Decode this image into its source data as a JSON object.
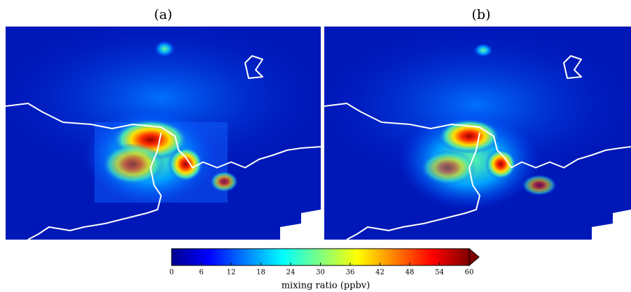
{
  "panels": [
    {
      "label": "(a)"
    },
    {
      "label": "(b)"
    }
  ],
  "colorbar": {
    "label": "mixing ratio (ppbv)",
    "lim": [
      0,
      60
    ],
    "ticks": [
      0,
      6,
      12,
      18,
      24,
      30,
      36,
      42,
      48,
      54,
      60
    ],
    "extend": "max",
    "colors": [
      "#00008f",
      "#0000ff",
      "#0080ff",
      "#00ffff",
      "#80ff80",
      "#ffff00",
      "#ff8000",
      "#ff0000",
      "#800000"
    ]
  }
}
